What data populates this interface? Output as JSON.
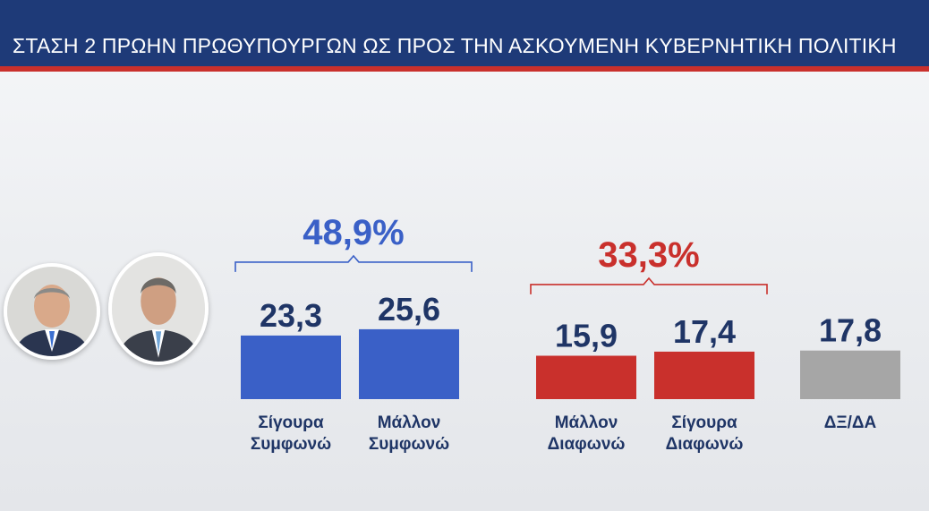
{
  "header": {
    "title": "ΣΤΑΣΗ 2 ΠΡΩΗΝ ΠΡΩΘΥΠΟΥΡΓΩΝ  ΩΣ ΠΡΟΣ ΤΗΝ ΑΣΚΟΥΜΕΝΗ ΚΥΒΕΡΝΗΤΙΚΗ ΠΟΛΙΤΙΚΗ"
  },
  "colors": {
    "header_bg": "#1e3a78",
    "header_accent": "#c9302c",
    "agree": "#3a60c7",
    "disagree": "#c9302c",
    "neutral": "#a6a6a6",
    "label_navy": "#1f3566"
  },
  "portraits": [
    {
      "icon": "person-portrait-icon"
    },
    {
      "icon": "person-portrait-icon"
    }
  ],
  "chart_data": {
    "type": "bar",
    "categories": [
      [
        "Σίγουρα",
        "Συμφωνώ"
      ],
      [
        "Μάλλον",
        "Συμφωνώ"
      ],
      [
        "Μάλλον",
        "Διαφωνώ"
      ],
      [
        "Σίγουρα",
        "Διαφωνώ"
      ],
      [
        "ΔΞ/ΔΑ"
      ]
    ],
    "values": [
      23.3,
      25.6,
      15.9,
      17.4,
      17.8
    ],
    "value_labels": [
      "23,3",
      "25,6",
      "15,9",
      "17,4",
      "17,8"
    ],
    "bar_colors": [
      "#3a60c7",
      "#3a60c7",
      "#c9302c",
      "#c9302c",
      "#a6a6a6"
    ],
    "groups": [
      {
        "label": "48,9%",
        "value": 48.9,
        "members": [
          0,
          1
        ],
        "color": "#3a60c7"
      },
      {
        "label": "33,3%",
        "value": 33.3,
        "members": [
          2,
          3
        ],
        "color": "#c9302c"
      }
    ],
    "grid": false,
    "legend": "none"
  }
}
